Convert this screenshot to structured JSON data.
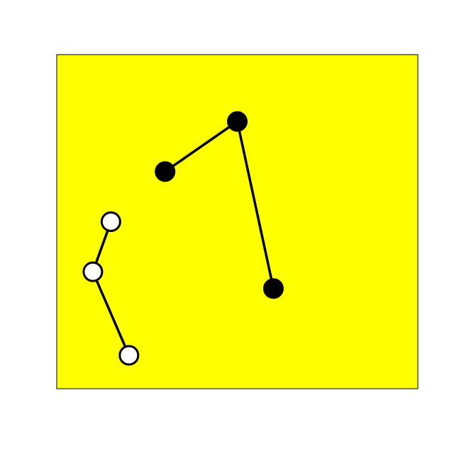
{
  "chart_data": {
    "type": "line",
    "title": "",
    "xlabel": "",
    "ylabel": "",
    "xlim": [
      0,
      10
    ],
    "ylim": [
      0,
      10
    ],
    "grid": false,
    "axes_visible": false,
    "background": "#ffff00",
    "series": [
      {
        "marker_fill": "#000000",
        "line_color": "#000000",
        "points": [
          {
            "x": 3,
            "y": 6.5
          },
          {
            "x": 5,
            "y": 8
          },
          {
            "x": 6,
            "y": 3
          }
        ]
      },
      {
        "marker_fill": "#ffffff",
        "line_color": "#000000",
        "points": [
          {
            "x": 1.5,
            "y": 5
          },
          {
            "x": 1,
            "y": 3.5
          },
          {
            "x": 2,
            "y": 1
          }
        ]
      }
    ]
  },
  "colors": {
    "page_background": "#ffffff",
    "frame_stroke": "#000000",
    "marker_stroke": "#000000"
  }
}
